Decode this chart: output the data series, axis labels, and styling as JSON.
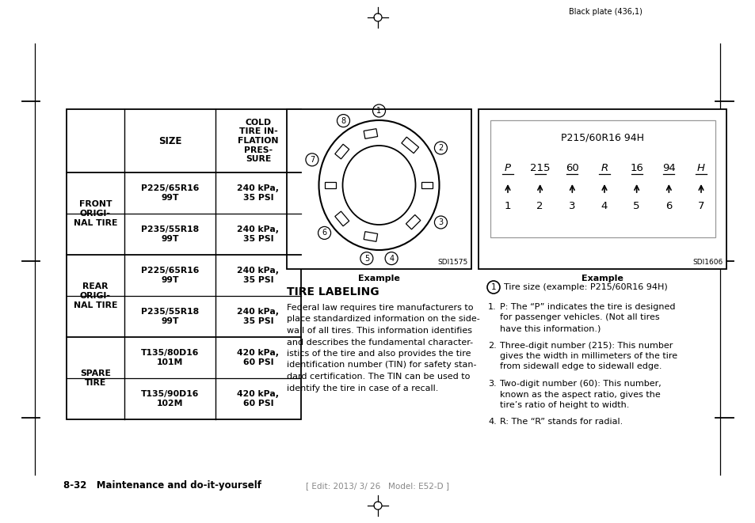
{
  "bg_color": "#ffffff",
  "page_header": "Black plate (436,1)",
  "page_footer_left": "8-32   Maintenance and do-it-yourself",
  "page_footer_center": "[ Edit: 2013/ 3/ 26   Model: E52-D ]",
  "table_header": [
    "SIZE",
    "COLD\nTIRE IN-\nFLATION\nPRES-\nSURE"
  ],
  "table_groups": [
    {
      "label": "FRONT\nORIGI-\nNAL TIRE",
      "rows": [
        [
          "P225/65R16\n99T",
          "240 kPa,\n35 PSI"
        ],
        [
          "P235/55R18\n99T",
          "240 kPa,\n35 PSI"
        ]
      ]
    },
    {
      "label": "REAR\nORIGI-\nNAL TIRE",
      "rows": [
        [
          "P225/65R16\n99T",
          "240 kPa,\n35 PSI"
        ],
        [
          "P235/55R18\n99T",
          "240 kPa,\n35 PSI"
        ]
      ]
    },
    {
      "label": "SPARE\nTIRE",
      "rows": [
        [
          "T135/80D16\n101M",
          "420 kPa,\n60 PSI"
        ],
        [
          "T135/90D16\n102M",
          "420 kPa,\n60 PSI"
        ]
      ]
    }
  ],
  "tire_diagram_code": "SDI1575",
  "tire_diagram_label": "Example",
  "tire_code_title": "P215/60R16 94H",
  "tire_code_letters": [
    "P",
    "215",
    "60",
    "R",
    "16",
    "94",
    "H"
  ],
  "tire_code_numbers": [
    "1",
    "2",
    "3",
    "4",
    "5",
    "6",
    "7"
  ],
  "tire_code_label": "Example",
  "tire_code_code": "SDI1606",
  "section_title": "TIRE LABELING",
  "para_lines": [
    "Federal law requires tire manufacturers to",
    "place standardized information on the side-",
    "wall of all tires. This information identifies",
    "and describes the fundamental character-",
    "istics of the tire and also provides the tire",
    "identification number (TIN) for safety stan-",
    "dard certification. The TIN can be used to",
    "identify the tire in case of a recall."
  ],
  "note_text": "Tire size (example: P215/60R16 94H)",
  "list_items": [
    {
      "num": "1.",
      "lines": [
        "P: The “P” indicates the tire is designed",
        "for passenger vehicles. (Not all tires",
        "have this information.)"
      ]
    },
    {
      "num": "2.",
      "lines": [
        "Three-digit number (215): This number",
        "gives the width in millimeters of the tire",
        "from sidewall edge to sidewall edge."
      ]
    },
    {
      "num": "3.",
      "lines": [
        "Two-digit number (60): This number,",
        "known as the aspect ratio, gives the",
        "tire’s ratio of height to width."
      ]
    },
    {
      "num": "4.",
      "lines": [
        "R: The “R” stands for radial."
      ]
    }
  ]
}
